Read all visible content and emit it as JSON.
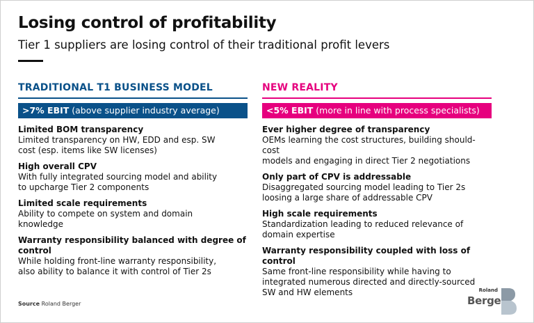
{
  "header": {
    "title": "Losing control of profitability",
    "subtitle": "Tier 1 suppliers are losing control of their traditional profit levers"
  },
  "left": {
    "heading": "TRADITIONAL T1 BUSINESS MODEL",
    "accent": "#0a5189",
    "banner_bold": ">7% EBIT",
    "banner_text": " (above supplier industry average)",
    "items": [
      {
        "title": "Limited BOM transparency",
        "text": [
          "Limited transparency on HW, EDD and esp. SW",
          "cost (esp. items like SW licenses)"
        ]
      },
      {
        "title": "High overall CPV",
        "text": [
          "With fully integrated sourcing model and ability",
          "to upcharge Tier 2 components"
        ]
      },
      {
        "title": "Limited scale requirements",
        "text": [
          "Ability to compete on system and domain",
          "knowledge"
        ]
      },
      {
        "title": "Warranty responsibility balanced with degree of control",
        "text": [
          "While holding front-line warranty responsibility,",
          "also ability to balance it with control of Tier 2s"
        ]
      }
    ]
  },
  "right": {
    "heading": "NEW REALITY",
    "accent": "#e6007e",
    "banner_bold": "<5% EBIT",
    "banner_text": " (more in line with process specialists)",
    "items": [
      {
        "title": "Ever higher degree of transparency",
        "text": [
          "OEMs learning the cost structures, building should-cost",
          "models and engaging in direct Tier 2 negotiations"
        ]
      },
      {
        "title": "Only part of CPV is addressable",
        "text": [
          "Disaggregated sourcing model leading to Tier 2s",
          "loosing a large share of addressable CPV"
        ]
      },
      {
        "title": "High scale requirements",
        "text": [
          "Standardization leading to reduced relevance of",
          "domain expertise"
        ]
      },
      {
        "title": "Warranty responsibility coupled with loss of control",
        "text": [
          "Same front-line responsibility while having to",
          "integrated numerous directed and directly-sourced",
          "SW and HW elements"
        ]
      }
    ]
  },
  "footer": {
    "source_label": "Source",
    "source_text": " Roland Berger",
    "logo_small": "Roland",
    "logo_big": "Berger"
  }
}
